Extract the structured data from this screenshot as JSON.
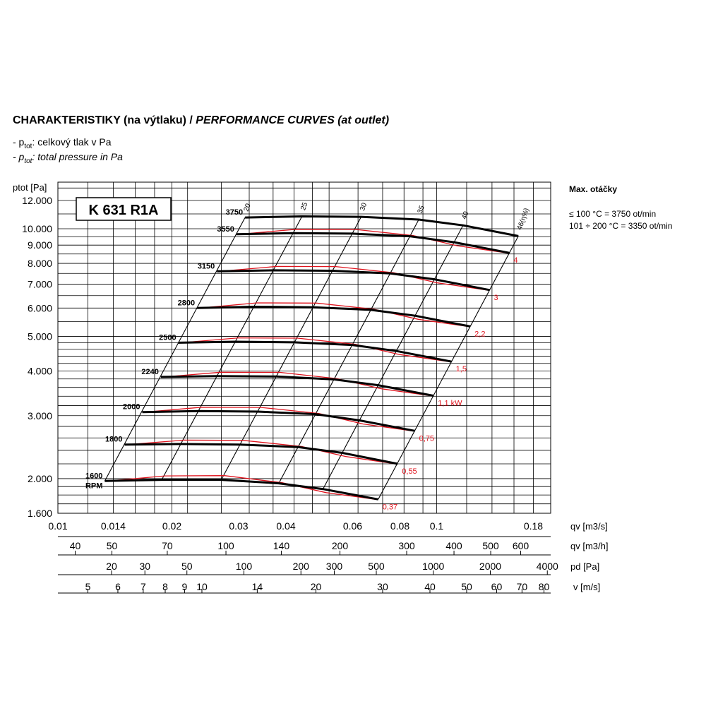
{
  "header": {
    "title_main": "CHARAKTERISTIKY (na výtlaku) / ",
    "title_italic": "PERFORMANCE CURVES (at outlet)",
    "legend_cz_prefix": "- p",
    "legend_cz_sub": "tot",
    "legend_cz_text": ": celkový tlak v Pa",
    "legend_en_prefix": "- p",
    "legend_en_sub": "tot",
    "legend_en_text": ": total pressure in Pa"
  },
  "side_panel": {
    "heading": "Max. otáčky",
    "line1": "≤ 100 °C = 3750 ot/min",
    "line2": "101 ÷ 200 °C = 3350 ot/min"
  },
  "chart_data": {
    "type": "line",
    "model_label": "K 631 R1A",
    "y_axis_label": "ptot [Pa]",
    "y_scale": "log",
    "y_range": [
      1600,
      12000
    ],
    "y_ticks": [
      1600,
      2000,
      3000,
      4000,
      5000,
      6000,
      7000,
      8000,
      9000,
      10000,
      12000
    ],
    "y_tick_labels": [
      "1.600",
      "2.000",
      "3.000",
      "4.000",
      "5.000",
      "6.000",
      "7.000",
      "8.000",
      "9.000",
      "10.000",
      "12.000"
    ],
    "x_scale": "log",
    "x_axes": [
      {
        "unit": "qv [m3/s]",
        "ticks": [
          0.01,
          0.014,
          0.02,
          0.03,
          0.04,
          0.06,
          0.08,
          0.1,
          0.18
        ],
        "labels": [
          "0.01",
          "0.014",
          "0.02",
          "0.03",
          "0.04",
          "0.06",
          "0.08",
          "0.1",
          "0.18"
        ]
      },
      {
        "unit": "qv [m3/h]",
        "labels": [
          "40",
          "50",
          "70",
          "100",
          "140",
          "200",
          "300",
          "400",
          "500",
          "600"
        ]
      },
      {
        "unit": "pd [Pa]",
        "labels": [
          "20",
          "30",
          "50",
          "100",
          "200",
          "300",
          "500",
          "1000",
          "2000",
          "4000"
        ]
      },
      {
        "unit": "v [m/s]",
        "labels": [
          "5",
          "6",
          "7",
          "8",
          "9",
          "10",
          "14",
          "20",
          "30",
          "40",
          "50",
          "60",
          "70",
          "80"
        ]
      }
    ],
    "series": [
      {
        "name": "1600",
        "points": [
          [
            0.0133,
            1970
          ],
          [
            0.0188,
            1985
          ],
          [
            0.027,
            1985
          ],
          [
            0.0383,
            1940
          ],
          [
            0.0501,
            1870
          ],
          [
            0.0701,
            1750
          ]
        ]
      },
      {
        "name": "1800",
        "points": [
          [
            0.015,
            2490
          ],
          [
            0.0211,
            2500
          ],
          [
            0.0303,
            2490
          ],
          [
            0.0431,
            2450
          ],
          [
            0.0564,
            2360
          ],
          [
            0.0789,
            2200
          ]
        ]
      },
      {
        "name": "2000",
        "points": [
          [
            0.0167,
            3070
          ],
          [
            0.0235,
            3090
          ],
          [
            0.0337,
            3080
          ],
          [
            0.0479,
            3030
          ],
          [
            0.0626,
            2910
          ],
          [
            0.0876,
            2720
          ]
        ]
      },
      {
        "name": "2240",
        "points": [
          [
            0.0187,
            3850
          ],
          [
            0.0263,
            3870
          ],
          [
            0.0377,
            3860
          ],
          [
            0.0536,
            3790
          ],
          [
            0.0701,
            3650
          ],
          [
            0.0982,
            3410
          ]
        ]
      },
      {
        "name": "2500",
        "points": [
          [
            0.0208,
            4800
          ],
          [
            0.0294,
            4830
          ],
          [
            0.0421,
            4810
          ],
          [
            0.0598,
            4730
          ],
          [
            0.0783,
            4550
          ],
          [
            0.1095,
            4250
          ]
        ]
      },
      {
        "name": "2800",
        "points": [
          [
            0.0233,
            6000
          ],
          [
            0.0329,
            6050
          ],
          [
            0.0472,
            6030
          ],
          [
            0.067,
            5930
          ],
          [
            0.0877,
            5710
          ],
          [
            0.1227,
            5330
          ]
        ]
      },
      {
        "name": "3150",
        "points": [
          [
            0.0263,
            7600
          ],
          [
            0.037,
            7650
          ],
          [
            0.0531,
            7630
          ],
          [
            0.0754,
            7500
          ],
          [
            0.0986,
            7220
          ],
          [
            0.138,
            6740
          ]
        ]
      },
      {
        "name": "3550",
        "points": [
          [
            0.0296,
            9650
          ],
          [
            0.0417,
            9720
          ],
          [
            0.0598,
            9690
          ],
          [
            0.085,
            9530
          ],
          [
            0.1112,
            9170
          ],
          [
            0.1555,
            8560
          ]
        ]
      },
      {
        "name": "3750",
        "points": [
          [
            0.0312,
            10750
          ],
          [
            0.0441,
            10830
          ],
          [
            0.0632,
            10800
          ],
          [
            0.0897,
            10610
          ],
          [
            0.1174,
            10220
          ],
          [
            0.1643,
            9540
          ]
        ]
      }
    ],
    "power_curves_kw": [
      "0,37",
      "0,55",
      "0,75",
      "1,1 kW",
      "1,5",
      "2,2",
      "3",
      "4"
    ],
    "efficiency_lines_percent": [
      "20",
      "25",
      "30",
      "35",
      "40",
      "46(η%)"
    ]
  }
}
